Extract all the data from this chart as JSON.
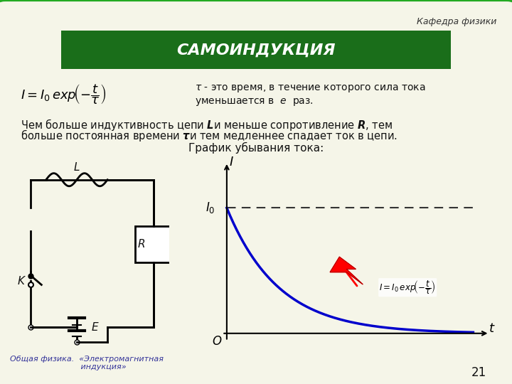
{
  "bg_color": "#f5f5e8",
  "slide_border_color": "#22aa22",
  "title_text": "САМОИНДУКЦИЯ",
  "title_bg_color": "#1a6e1a",
  "title_text_color": "#ffffff",
  "header_text": "Кафедра физики",
  "formula_text": "$I = I_0\\, exp\\!\\left(-\\dfrac{t}{\\tau}\\right)$",
  "tau_def": "$\\tau$ - это время, в течение которого сила тока\nуменьшается в  $e$  раз.",
  "main_text_line1": "Чем больше индуктивность цепи $\\boldsymbol{L}$и меньше сопротивление $\\boldsymbol{R}$, тем",
  "main_text_line2": "больше постоянная времени $\\boldsymbol{\\tau}$и тем медленнее спадает ток в цепи.",
  "graph_title": "График убывания тока:",
  "footer_text": "Общая физика.  «Электромагнитная\nиндукция»",
  "page_num": "21",
  "curve_color": "#0000cc",
  "dashed_color": "#333333",
  "arrow_color": "#cc0000",
  "label_color": "#000000",
  "graph_formula": "$I = I_0 exp\\!\\left(-\\dfrac{t}{\\tau}\\right)$"
}
